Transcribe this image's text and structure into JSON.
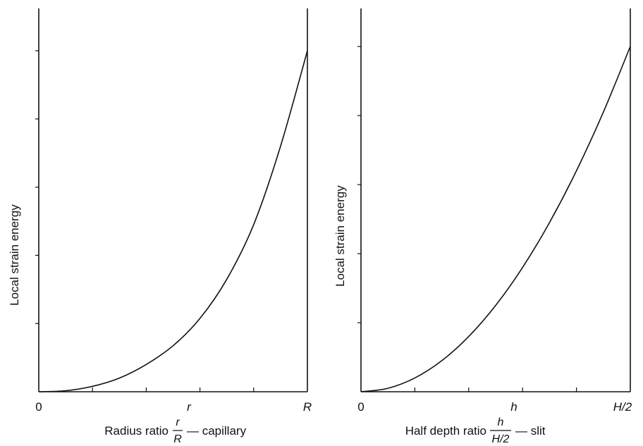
{
  "chart_data": [
    {
      "type": "line",
      "ylabel": "Local strain energy",
      "xlabel": {
        "prefix": "Radius ratio",
        "fraction_numerator": "r",
        "fraction_denominator": "R",
        "suffix": "— capillary"
      },
      "x_tick_labels": [
        "0",
        "r",
        "R"
      ],
      "x_tick_label_positions": [
        0,
        0.6,
        1
      ],
      "x_ticks_count": 5,
      "y_ticks_count": 5,
      "xlim": [
        0,
        1
      ],
      "ylim": [
        0,
        1
      ],
      "series": [
        {
          "x": [
            0,
            0.1,
            0.2,
            0.3,
            0.4,
            0.5,
            0.6,
            0.7,
            0.8,
            0.9,
            1.0
          ],
          "y": [
            0,
            0.003,
            0.016,
            0.04,
            0.08,
            0.135,
            0.215,
            0.33,
            0.49,
            0.72,
            1.0
          ]
        }
      ]
    },
    {
      "type": "line",
      "ylabel": "Local strain energy",
      "xlabel": {
        "prefix": "Half depth ratio",
        "fraction_numerator": "h",
        "fraction_denominator": "H/2",
        "suffix": "— slit"
      },
      "x_tick_labels": [
        "0",
        "h",
        "H/2"
      ],
      "x_tick_label_positions": [
        0,
        0.6,
        1
      ],
      "x_ticks_count": 5,
      "y_ticks_count": 5,
      "xlim": [
        0,
        1
      ],
      "ylim": [
        0,
        1
      ],
      "series": [
        {
          "x": [
            0,
            0.1,
            0.2,
            0.3,
            0.4,
            0.5,
            0.6,
            0.7,
            0.8,
            0.9,
            1.0
          ],
          "y": [
            0,
            0.01,
            0.04,
            0.09,
            0.16,
            0.25,
            0.36,
            0.49,
            0.64,
            0.81,
            1.0
          ]
        }
      ]
    }
  ]
}
